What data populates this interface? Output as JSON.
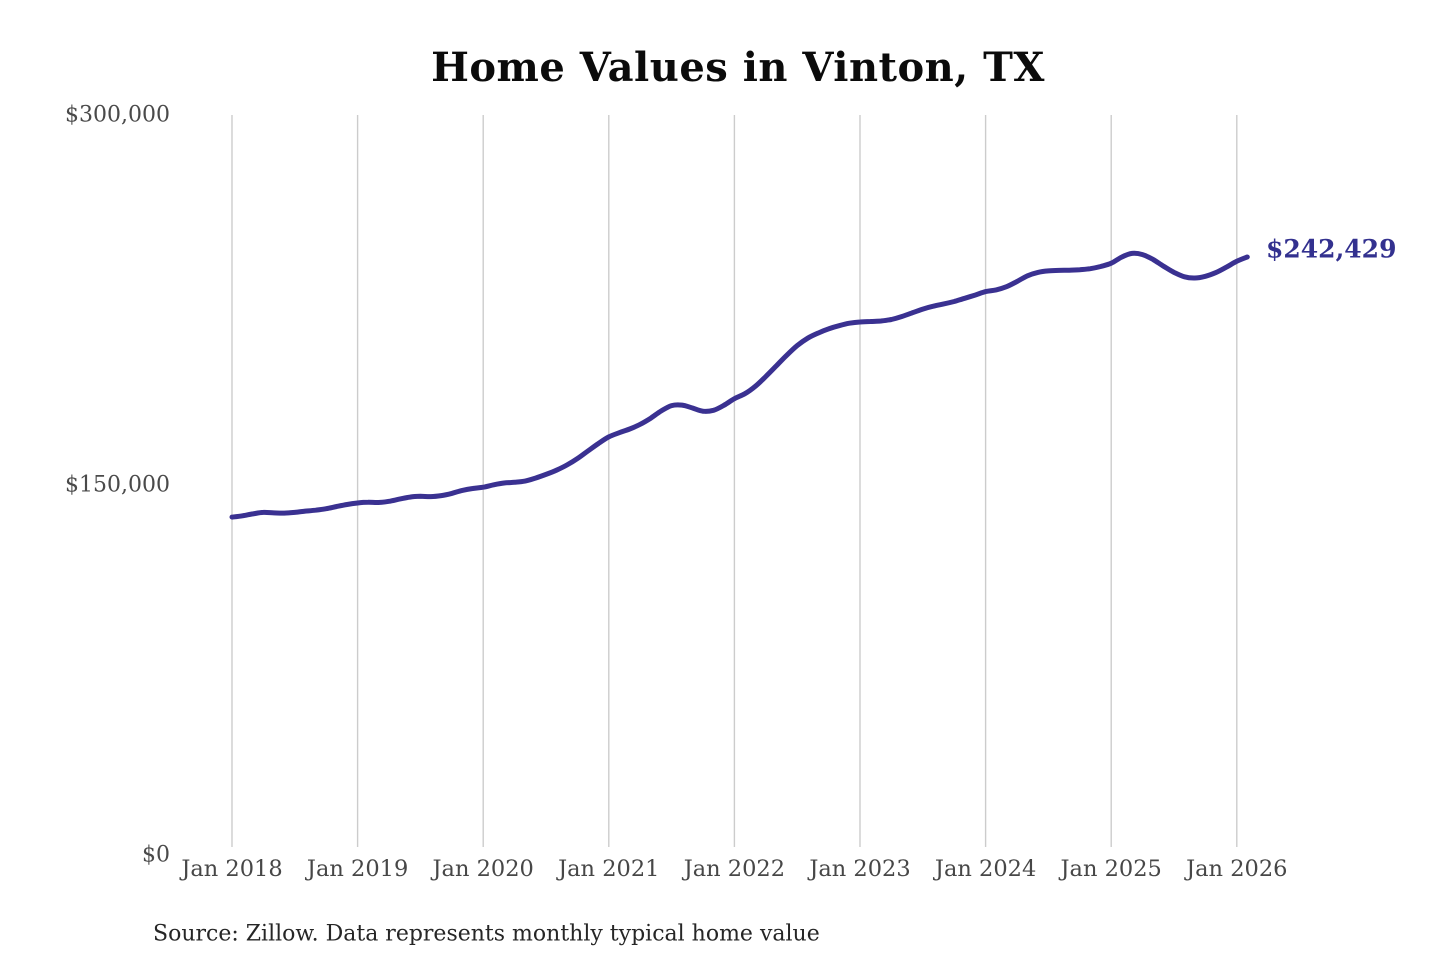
{
  "header": {
    "title": "Home Values in Vinton, TX"
  },
  "chart_data": {
    "type": "line",
    "title": "Home Values in Vinton, TX",
    "xlabel": "",
    "ylabel": "",
    "ylim": [
      0,
      300000
    ],
    "grid": "vertical-only",
    "legend_position": "none",
    "start_month": "Jan 2018",
    "end_month": "Feb 2026",
    "months_per_point": 1,
    "x_tick_labels": [
      "Jan 2018",
      "Jan 2019",
      "Jan 2020",
      "Jan 2021",
      "Jan 2022",
      "Jan 2023",
      "Jan 2024",
      "Jan 2025",
      "Jan 2026"
    ],
    "x_tick_month_indices": [
      0,
      12,
      24,
      36,
      48,
      60,
      72,
      84,
      96
    ],
    "y_ticks": [
      {
        "label": "$300,000",
        "value": 300000
      },
      {
        "label": "$150,000",
        "value": 150000
      },
      {
        "label": "$0",
        "value": 0
      }
    ],
    "series": [
      {
        "name": "Monthly typical home value",
        "values": [
          137000,
          137500,
          138300,
          138900,
          138700,
          138600,
          138900,
          139400,
          139800,
          140400,
          141300,
          142100,
          142700,
          143000,
          142900,
          143400,
          144300,
          145100,
          145400,
          145300,
          145700,
          146600,
          147800,
          148600,
          149100,
          150100,
          150800,
          151100,
          151600,
          152800,
          154300,
          156000,
          158100,
          160700,
          163800,
          166800,
          169500,
          171200,
          172700,
          174600,
          177100,
          180000,
          182200,
          182400,
          181200,
          179900,
          180300,
          182300,
          185000,
          187000,
          190000,
          194000,
          198300,
          202600,
          206500,
          209500,
          211600,
          213300,
          214600,
          215600,
          216100,
          216300,
          216500,
          217100,
          218300,
          219800,
          221300,
          222500,
          223400,
          224400,
          225700,
          227000,
          228400,
          229100,
          230400,
          232500,
          234800,
          236200,
          236800,
          237000,
          237100,
          237300,
          237700,
          238600,
          239900,
          242400,
          243900,
          243400,
          241400,
          238700,
          236200,
          234400,
          233900,
          234600,
          236100,
          238300,
          240700,
          242429
        ]
      }
    ],
    "end_label": "$242,429",
    "last_value": 242429
  },
  "footer": {
    "source": "Source: Zillow. Data represents monthly typical home value"
  },
  "colors": {
    "line": "#3a3191",
    "end_label": "#33318f",
    "gridline": "#cccccc",
    "title": "#0b0b0b",
    "axis_label": "#4a4a4a",
    "source_text": "#262626",
    "background": "#ffffff"
  }
}
